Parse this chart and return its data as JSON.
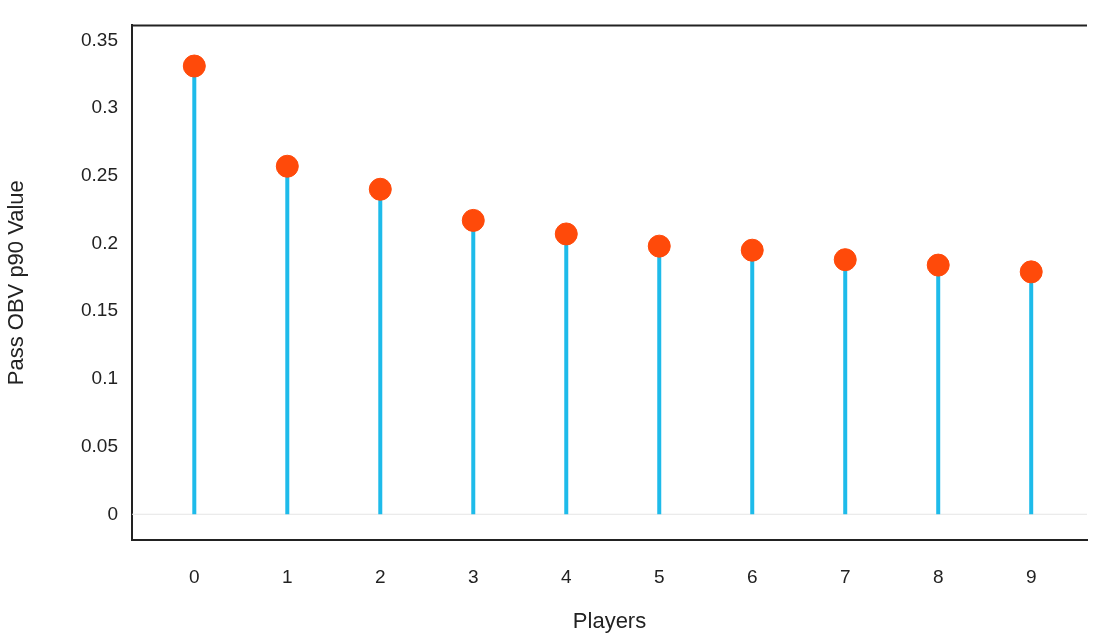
{
  "chart_data": {
    "type": "lollipop",
    "xlabel": "Players",
    "ylabel": "Pass OBV p90 Value",
    "x": [
      0,
      1,
      2,
      3,
      4,
      5,
      6,
      7,
      8,
      9
    ],
    "series": [
      {
        "color": "#1ebbea",
        "colors": [
          "#ff4a0a",
          "#ff4a0a",
          "#ff4a0a",
          "#ff4a0a",
          "#ff4a0a",
          "#ff4a0a",
          "#ff4a0a",
          "#ff4a0a",
          "#ff4a0a",
          "#ff4a0a"
        ],
        "values": [
          0.331,
          0.257,
          0.24,
          0.217,
          0.207,
          0.198,
          0.195,
          0.188,
          0.184,
          0.179
        ]
      }
    ],
    "xlim": [
      -0.67,
      9.6
    ],
    "xticks": [
      0,
      1,
      2,
      3,
      4,
      5,
      6,
      7,
      8,
      9
    ],
    "ylim": [
      -0.019,
      0.361
    ],
    "yticks": [
      0,
      0.05,
      0.1,
      0.15,
      0.2,
      0.25,
      0.3,
      0.35
    ],
    "ref_lines": [
      {
        "axis": "y",
        "value": 0,
        "color": "#e6e6e6"
      }
    ],
    "grid": false,
    "legend": false,
    "marker": "circle"
  }
}
